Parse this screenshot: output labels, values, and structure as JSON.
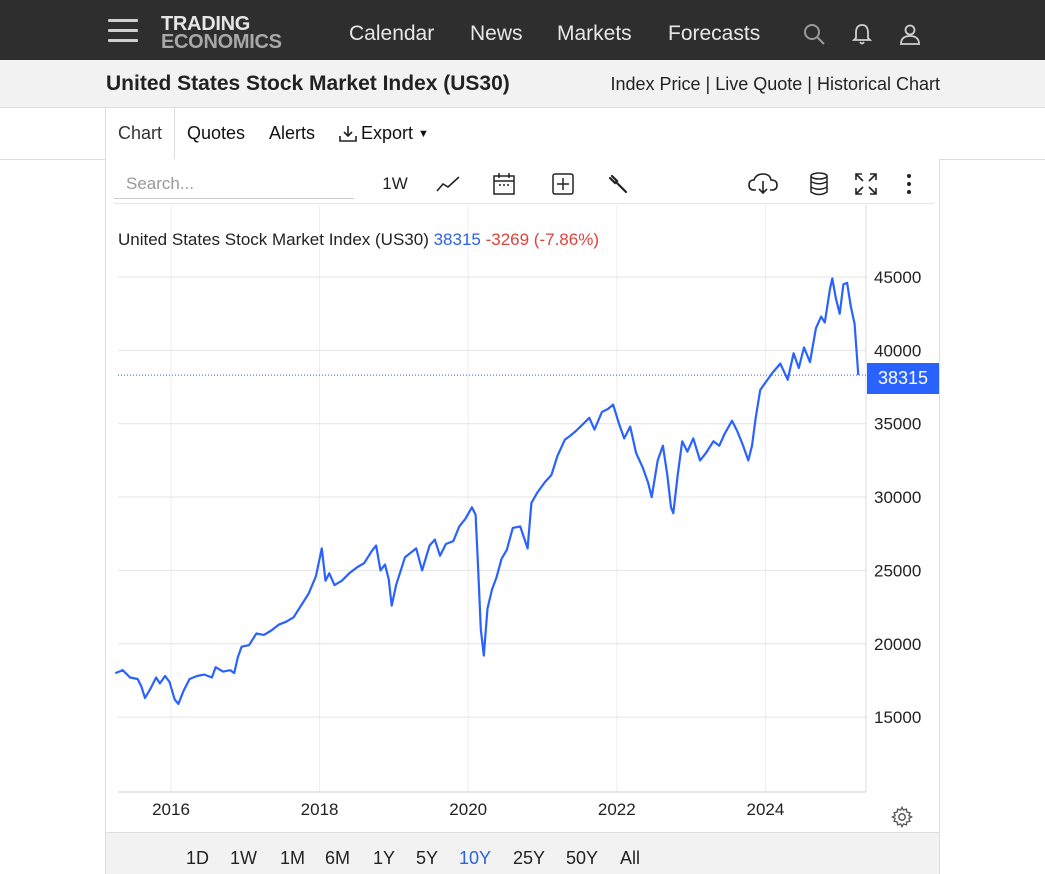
{
  "nav": {
    "logo_line1": "TRADING",
    "logo_line2": "ECONOMICS",
    "items": [
      "Calendar",
      "News",
      "Markets",
      "Forecasts"
    ],
    "icons": [
      "search-icon",
      "bell-icon",
      "user-icon"
    ]
  },
  "page": {
    "title": "United States Stock Market Index (US30)",
    "links": "Index Price | Live Quote | Historical Chart"
  },
  "tabs": {
    "chart": "Chart",
    "quotes": "Quotes",
    "alerts": "Alerts",
    "export": "Export"
  },
  "toolbar": {
    "search_placeholder": "Search...",
    "interval": "1W",
    "icons": [
      "line-chart-icon",
      "calendar-icon",
      "add-indicator-icon",
      "wrench-icon",
      "download-icon",
      "database-icon",
      "fullscreen-icon",
      "more-icon"
    ]
  },
  "legend": {
    "name": "United States Stock Market Index (US30)",
    "value": "38315",
    "change": "-3269 (-7.86%)"
  },
  "price_tag": "38315",
  "ranges": [
    "1D",
    "1W",
    "1M",
    "6M",
    "1Y",
    "5Y",
    "10Y",
    "25Y",
    "50Y",
    "All"
  ],
  "active_range": "10Y",
  "colors": {
    "line": "#2962ff",
    "change": "#e0413a",
    "accent": "#2b62e0"
  },
  "chart_data": {
    "type": "line",
    "xlabel": "",
    "ylabel": "",
    "x_ticks": [
      "2016",
      "2018",
      "2020",
      "2022",
      "2024"
    ],
    "y_ticks": [
      15000,
      20000,
      25000,
      30000,
      35000,
      40000,
      45000
    ],
    "ylim": [
      10000,
      47000
    ],
    "xlim": [
      2015.25,
      2025.35
    ],
    "grid": true,
    "last_value": 38315,
    "series": [
      {
        "points": [
          [
            2015.25,
            18000
          ],
          [
            2015.35,
            18200
          ],
          [
            2015.45,
            17700
          ],
          [
            2015.55,
            17600
          ],
          [
            2015.6,
            17100
          ],
          [
            2015.65,
            16300
          ],
          [
            2015.72,
            16900
          ],
          [
            2015.8,
            17700
          ],
          [
            2015.85,
            17300
          ],
          [
            2015.92,
            17800
          ],
          [
            2015.98,
            17400
          ],
          [
            2016.05,
            16200
          ],
          [
            2016.1,
            15900
          ],
          [
            2016.17,
            16800
          ],
          [
            2016.25,
            17600
          ],
          [
            2016.35,
            17800
          ],
          [
            2016.45,
            17900
          ],
          [
            2016.55,
            17700
          ],
          [
            2016.6,
            18400
          ],
          [
            2016.7,
            18100
          ],
          [
            2016.8,
            18200
          ],
          [
            2016.85,
            18000
          ],
          [
            2016.9,
            19100
          ],
          [
            2016.95,
            19800
          ],
          [
            2017.05,
            19900
          ],
          [
            2017.15,
            20700
          ],
          [
            2017.25,
            20600
          ],
          [
            2017.35,
            20900
          ],
          [
            2017.45,
            21300
          ],
          [
            2017.55,
            21500
          ],
          [
            2017.65,
            21800
          ],
          [
            2017.75,
            22600
          ],
          [
            2017.85,
            23400
          ],
          [
            2017.95,
            24600
          ],
          [
            2018.03,
            26500
          ],
          [
            2018.08,
            24300
          ],
          [
            2018.13,
            24800
          ],
          [
            2018.2,
            24000
          ],
          [
            2018.3,
            24300
          ],
          [
            2018.4,
            24800
          ],
          [
            2018.5,
            25200
          ],
          [
            2018.6,
            25500
          ],
          [
            2018.7,
            26300
          ],
          [
            2018.76,
            26700
          ],
          [
            2018.82,
            25000
          ],
          [
            2018.88,
            25400
          ],
          [
            2018.93,
            24400
          ],
          [
            2018.97,
            22600
          ],
          [
            2019.03,
            24000
          ],
          [
            2019.15,
            25900
          ],
          [
            2019.3,
            26500
          ],
          [
            2019.38,
            25000
          ],
          [
            2019.48,
            26700
          ],
          [
            2019.55,
            27100
          ],
          [
            2019.62,
            26000
          ],
          [
            2019.7,
            26800
          ],
          [
            2019.8,
            27000
          ],
          [
            2019.88,
            28000
          ],
          [
            2019.96,
            28500
          ],
          [
            2020.05,
            29300
          ],
          [
            2020.1,
            28800
          ],
          [
            2020.13,
            25500
          ],
          [
            2020.17,
            21000
          ],
          [
            2020.21,
            19200
          ],
          [
            2020.26,
            22400
          ],
          [
            2020.32,
            23700
          ],
          [
            2020.38,
            24500
          ],
          [
            2020.45,
            25800
          ],
          [
            2020.52,
            26400
          ],
          [
            2020.6,
            27900
          ],
          [
            2020.7,
            28000
          ],
          [
            2020.8,
            26500
          ],
          [
            2020.85,
            29600
          ],
          [
            2020.93,
            30300
          ],
          [
            2021.03,
            31000
          ],
          [
            2021.12,
            31500
          ],
          [
            2021.2,
            32800
          ],
          [
            2021.3,
            33900
          ],
          [
            2021.38,
            34200
          ],
          [
            2021.45,
            34500
          ],
          [
            2021.55,
            35000
          ],
          [
            2021.63,
            35400
          ],
          [
            2021.7,
            34600
          ],
          [
            2021.8,
            35800
          ],
          [
            2021.88,
            36000
          ],
          [
            2021.95,
            36300
          ],
          [
            2022.03,
            35000
          ],
          [
            2022.1,
            34000
          ],
          [
            2022.18,
            34800
          ],
          [
            2022.26,
            33000
          ],
          [
            2022.35,
            32000
          ],
          [
            2022.42,
            31000
          ],
          [
            2022.47,
            30000
          ],
          [
            2022.55,
            32500
          ],
          [
            2022.62,
            33500
          ],
          [
            2022.68,
            31500
          ],
          [
            2022.73,
            29300
          ],
          [
            2022.76,
            28900
          ],
          [
            2022.82,
            31500
          ],
          [
            2022.88,
            33800
          ],
          [
            2022.95,
            33100
          ],
          [
            2023.03,
            34000
          ],
          [
            2023.12,
            32500
          ],
          [
            2023.2,
            33000
          ],
          [
            2023.3,
            33800
          ],
          [
            2023.38,
            33500
          ],
          [
            2023.45,
            34300
          ],
          [
            2023.55,
            35200
          ],
          [
            2023.62,
            34500
          ],
          [
            2023.7,
            33500
          ],
          [
            2023.77,
            32500
          ],
          [
            2023.82,
            33500
          ],
          [
            2023.87,
            35400
          ],
          [
            2023.93,
            37300
          ],
          [
            2024.0,
            37800
          ],
          [
            2024.1,
            38500
          ],
          [
            2024.2,
            39100
          ],
          [
            2024.3,
            38000
          ],
          [
            2024.38,
            39800
          ],
          [
            2024.45,
            38800
          ],
          [
            2024.52,
            40200
          ],
          [
            2024.6,
            39200
          ],
          [
            2024.68,
            41500
          ],
          [
            2024.75,
            42300
          ],
          [
            2024.8,
            41900
          ],
          [
            2024.87,
            44200
          ],
          [
            2024.9,
            44900
          ],
          [
            2024.95,
            43500
          ],
          [
            2025.0,
            42500
          ],
          [
            2025.05,
            44500
          ],
          [
            2025.1,
            44600
          ],
          [
            2025.15,
            43000
          ],
          [
            2025.2,
            41800
          ],
          [
            2025.25,
            38315
          ]
        ]
      }
    ]
  }
}
